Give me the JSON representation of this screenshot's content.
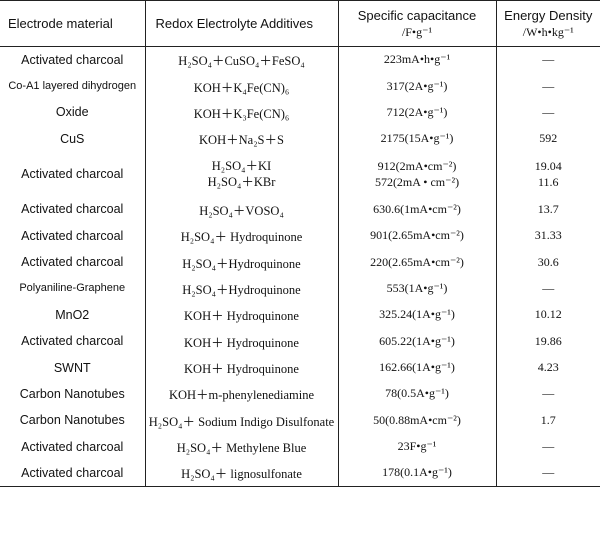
{
  "headers": {
    "material": "Electrode material",
    "additives": "Redox Electrolyte Additives",
    "capacitance": "Specific capacitance",
    "capacitance_unit": "/F•g⁻¹",
    "energy": "Energy Density",
    "energy_unit": "/W•h•kg⁻¹"
  },
  "rows": [
    {
      "material": "Activated charcoal",
      "additives": "H₂SO₄＋CuSO₄＋FeSO₄",
      "capacitance": "223mA•h•g⁻¹",
      "energy": "—"
    },
    {
      "material": "Co-A1 layered dihydrogen",
      "additives": "KOH＋K₄Fe(CN)₆",
      "capacitance": "317(2A•g⁻¹)",
      "energy": "—"
    },
    {
      "material": "Oxide",
      "additives": "KOH＋K₃Fe(CN)₆",
      "capacitance": "712(2A•g⁻¹)",
      "energy": "—"
    },
    {
      "material": "CuS",
      "additives": "KOH＋Na₂S＋S",
      "capacitance": "2175(15A•g⁻¹)",
      "energy": "592"
    },
    {
      "material": "Activated charcoal",
      "additives_lines": [
        "H₂SO₄＋KI",
        "H₂SO₄＋KBr"
      ],
      "capacitance_lines": [
        "912(2mA•cm⁻²)",
        "572(2mA • cm⁻²)"
      ],
      "energy_lines": [
        "19.04",
        "11.6"
      ]
    },
    {
      "material": "Activated charcoal",
      "additives": "H₂SO₄＋VOSO₄",
      "capacitance": "630.6(1mA•cm⁻²)",
      "energy": "13.7"
    },
    {
      "material": "Activated charcoal",
      "additives": "H₂SO₄＋ Hydroquinone",
      "capacitance": "901(2.65mA•cm⁻²)",
      "energy": "31.33"
    },
    {
      "material": "Activated charcoal",
      "additives": "H₂SO₄＋Hydroquinone",
      "capacitance": "220(2.65mA•cm⁻²)",
      "energy": "30.6"
    },
    {
      "material": "Polyaniline-Graphene",
      "additives": "H₂SO₄＋Hydroquinone",
      "capacitance": "553(1A•g⁻¹)",
      "energy": "—"
    },
    {
      "material": "MnO2",
      "additives": "KOH＋ Hydroquinone",
      "capacitance": "325.24(1A•g⁻¹)",
      "energy": "10.12"
    },
    {
      "material": "Activated charcoal",
      "additives": "KOH＋ Hydroquinone",
      "capacitance": "605.22(1A•g⁻¹)",
      "energy": "19.86"
    },
    {
      "material": "SWNT",
      "additives": "KOH＋ Hydroquinone",
      "capacitance": "162.66(1A•g⁻¹)",
      "energy": "4.23"
    },
    {
      "material": "Carbon Nanotubes",
      "additives": "KOH＋m-phenylenediamine",
      "capacitance": "78(0.5A•g⁻¹)",
      "energy": "—"
    },
    {
      "material": "Carbon Nanotubes",
      "additives": "H₂SO₄＋ Sodium Indigo Disulfonate",
      "capacitance": "50(0.88mA•cm⁻²)",
      "energy": "1.7"
    },
    {
      "material": "Activated charcoal",
      "additives": "H₂SO₄＋ Methylene Blue",
      "capacitance": "23F•g⁻¹",
      "energy": "—"
    },
    {
      "material": "Activated charcoal",
      "additives": "H₂SO₄＋ lignosulfonate",
      "capacitance": "178(0.1A•g⁻¹)",
      "energy": "—"
    }
  ]
}
